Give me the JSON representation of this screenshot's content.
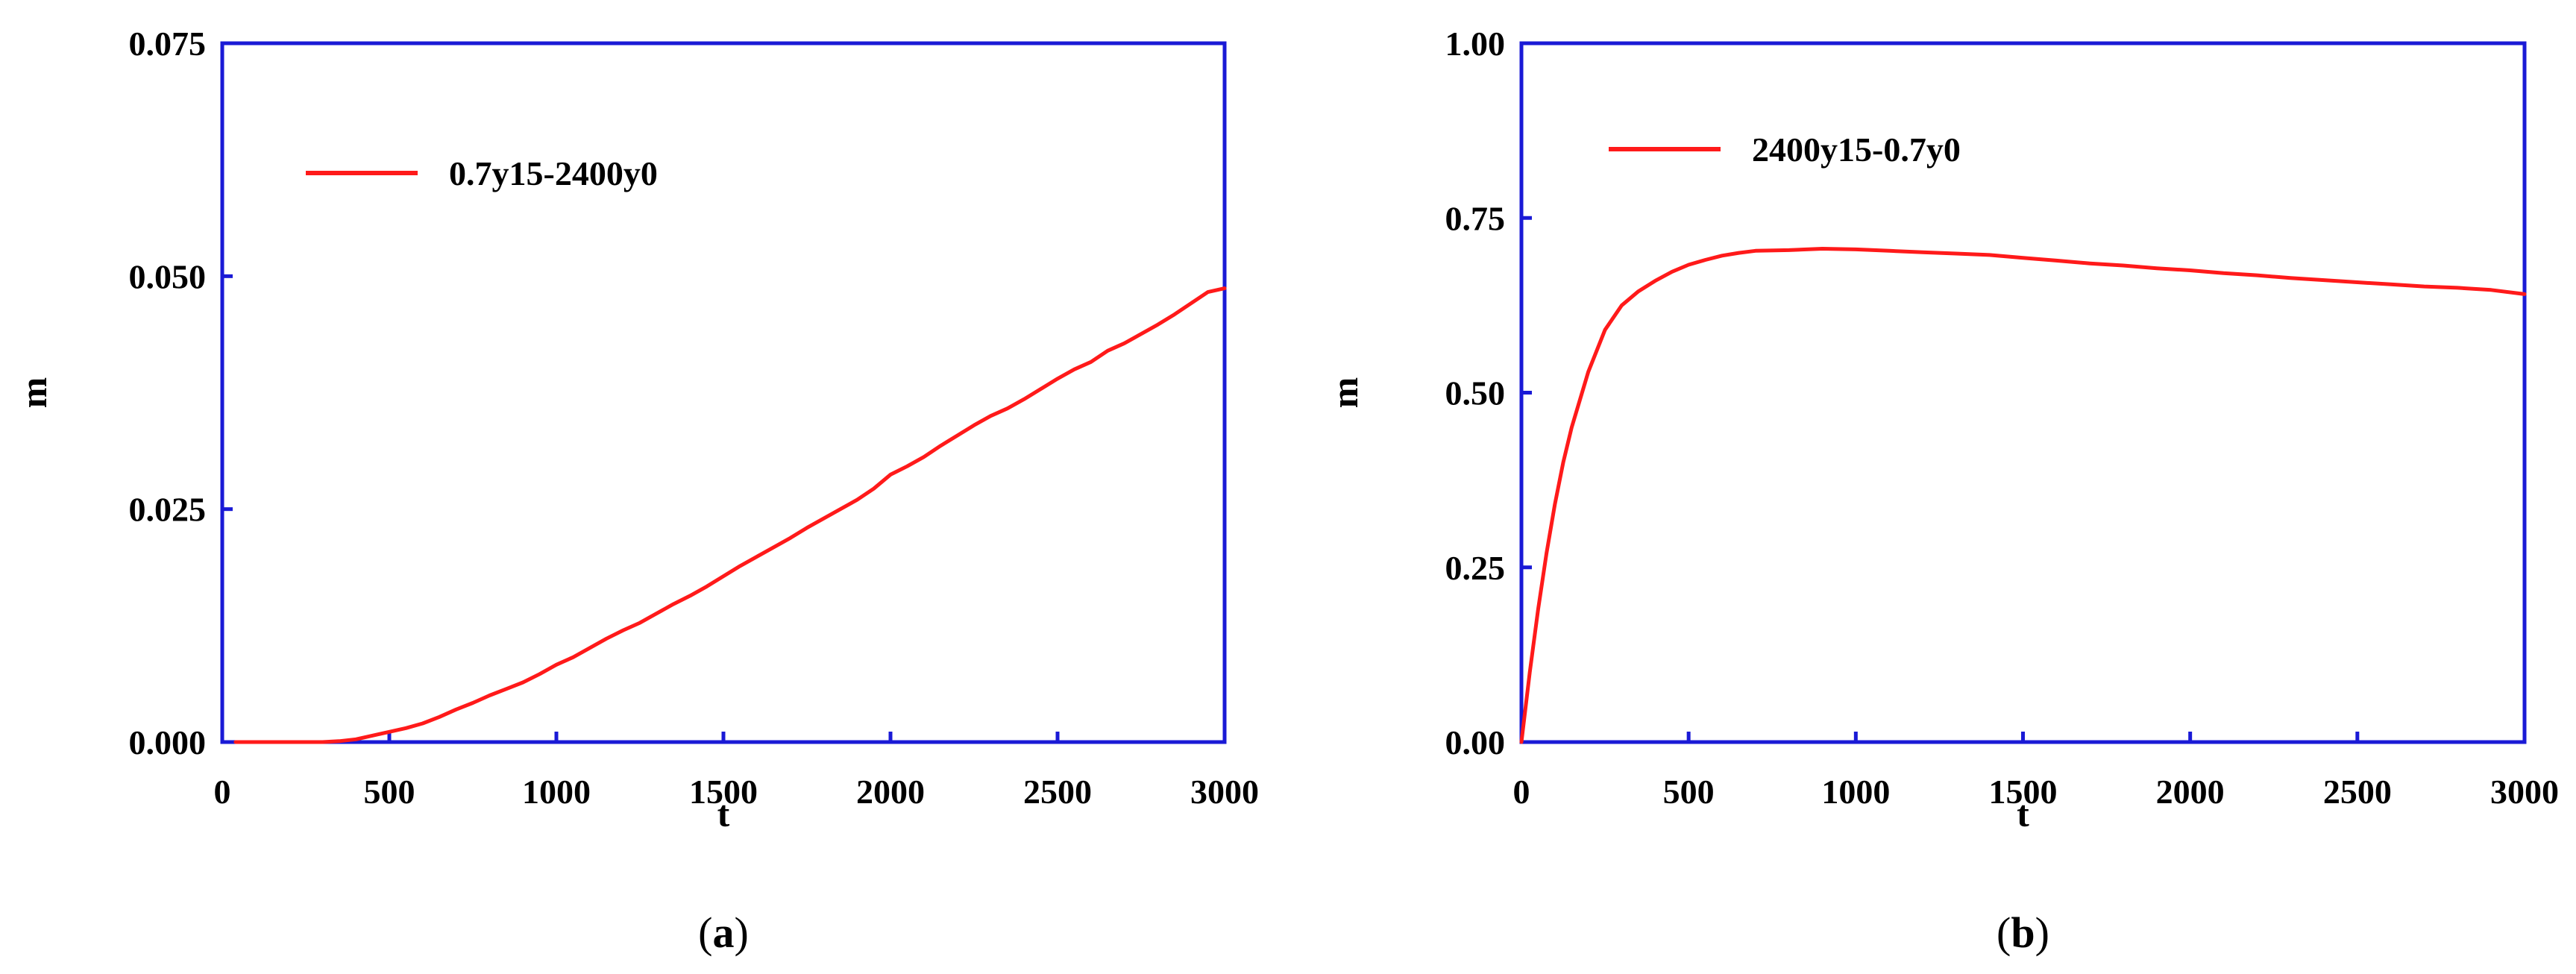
{
  "colors": {
    "axis": "#1a1ad6",
    "series": "#ff1a1a",
    "text": "#000000"
  },
  "chart_data": [
    {
      "type": "line",
      "panel": "a",
      "caption_open": "(",
      "caption_letter": "a",
      "caption_close": ")",
      "xlabel": "t",
      "ylabel": "m",
      "xlim": [
        0,
        3000
      ],
      "ylim": [
        0,
        0.075
      ],
      "xticks": [
        0,
        500,
        1000,
        1500,
        2000,
        2500,
        3000
      ],
      "xtick_labels": [
        "0",
        "500",
        "1000",
        "1500",
        "2000",
        "2500",
        "3000"
      ],
      "yticks": [
        0,
        0.025,
        0.05,
        0.075
      ],
      "ytick_labels": [
        "0.000",
        "0.025",
        "0.050",
        "0.075"
      ],
      "legend_position": "top-left",
      "series": [
        {
          "name": "0.7y15-2400y0",
          "x": [
            40,
            100,
            160,
            200,
            250,
            300,
            350,
            400,
            450,
            500,
            550,
            600,
            650,
            700,
            750,
            800,
            850,
            900,
            950,
            1000,
            1050,
            1100,
            1150,
            1200,
            1250,
            1300,
            1350,
            1400,
            1450,
            1500,
            1550,
            1600,
            1650,
            1700,
            1750,
            1800,
            1850,
            1900,
            1950,
            2000,
            2050,
            2100,
            2150,
            2200,
            2250,
            2300,
            2350,
            2400,
            2450,
            2500,
            2550,
            2600,
            2650,
            2700,
            2750,
            2800,
            2850,
            2900,
            2950,
            3000
          ],
          "y": [
            0.0,
            0.0,
            0.0,
            0.0,
            0.0,
            0.0,
            0.0001,
            0.0003,
            0.0007,
            0.0011,
            0.0015,
            0.002,
            0.0027,
            0.0035,
            0.0042,
            0.005,
            0.0057,
            0.0064,
            0.0073,
            0.0083,
            0.0091,
            0.0101,
            0.0111,
            0.012,
            0.0128,
            0.0138,
            0.0148,
            0.0157,
            0.0167,
            0.0178,
            0.0189,
            0.0199,
            0.0209,
            0.0219,
            0.023,
            0.024,
            0.025,
            0.026,
            0.0272,
            0.0287,
            0.0296,
            0.0306,
            0.0318,
            0.0329,
            0.034,
            0.035,
            0.0358,
            0.0368,
            0.0379,
            0.039,
            0.04,
            0.0408,
            0.042,
            0.0428,
            0.0438,
            0.0448,
            0.0459,
            0.0471,
            0.0483,
            0.0487
          ]
        }
      ]
    },
    {
      "type": "line",
      "panel": "b",
      "caption_open": "(",
      "caption_letter": "b",
      "caption_close": ")",
      "xlabel": "t",
      "ylabel": "m",
      "xlim": [
        0,
        3000
      ],
      "ylim": [
        0,
        1.0
      ],
      "xticks": [
        0,
        500,
        1000,
        1500,
        2000,
        2500,
        3000
      ],
      "xtick_labels": [
        "0",
        "500",
        "1000",
        "1500",
        "2000",
        "2500",
        "3000"
      ],
      "yticks": [
        0,
        0.25,
        0.5,
        0.75,
        1.0
      ],
      "ytick_labels": [
        "0.00",
        "0.25",
        "0.50",
        "0.75",
        "1.00"
      ],
      "legend_position": "top-left",
      "series": [
        {
          "name": "2400y15-0.7y0",
          "x": [
            0,
            25,
            50,
            75,
            100,
            125,
            150,
            175,
            200,
            250,
            300,
            350,
            400,
            450,
            500,
            550,
            600,
            650,
            700,
            800,
            900,
            1000,
            1100,
            1200,
            1300,
            1400,
            1500,
            1600,
            1700,
            1800,
            1900,
            2000,
            2100,
            2200,
            2300,
            2400,
            2500,
            2600,
            2700,
            2800,
            2900,
            3000
          ],
          "y": [
            0.0,
            0.1,
            0.19,
            0.27,
            0.34,
            0.4,
            0.45,
            0.49,
            0.53,
            0.59,
            0.625,
            0.645,
            0.66,
            0.673,
            0.683,
            0.69,
            0.696,
            0.7,
            0.703,
            0.704,
            0.706,
            0.705,
            0.703,
            0.701,
            0.699,
            0.697,
            0.693,
            0.689,
            0.685,
            0.682,
            0.678,
            0.675,
            0.671,
            0.668,
            0.664,
            0.661,
            0.658,
            0.655,
            0.652,
            0.65,
            0.647,
            0.641
          ]
        }
      ]
    }
  ]
}
